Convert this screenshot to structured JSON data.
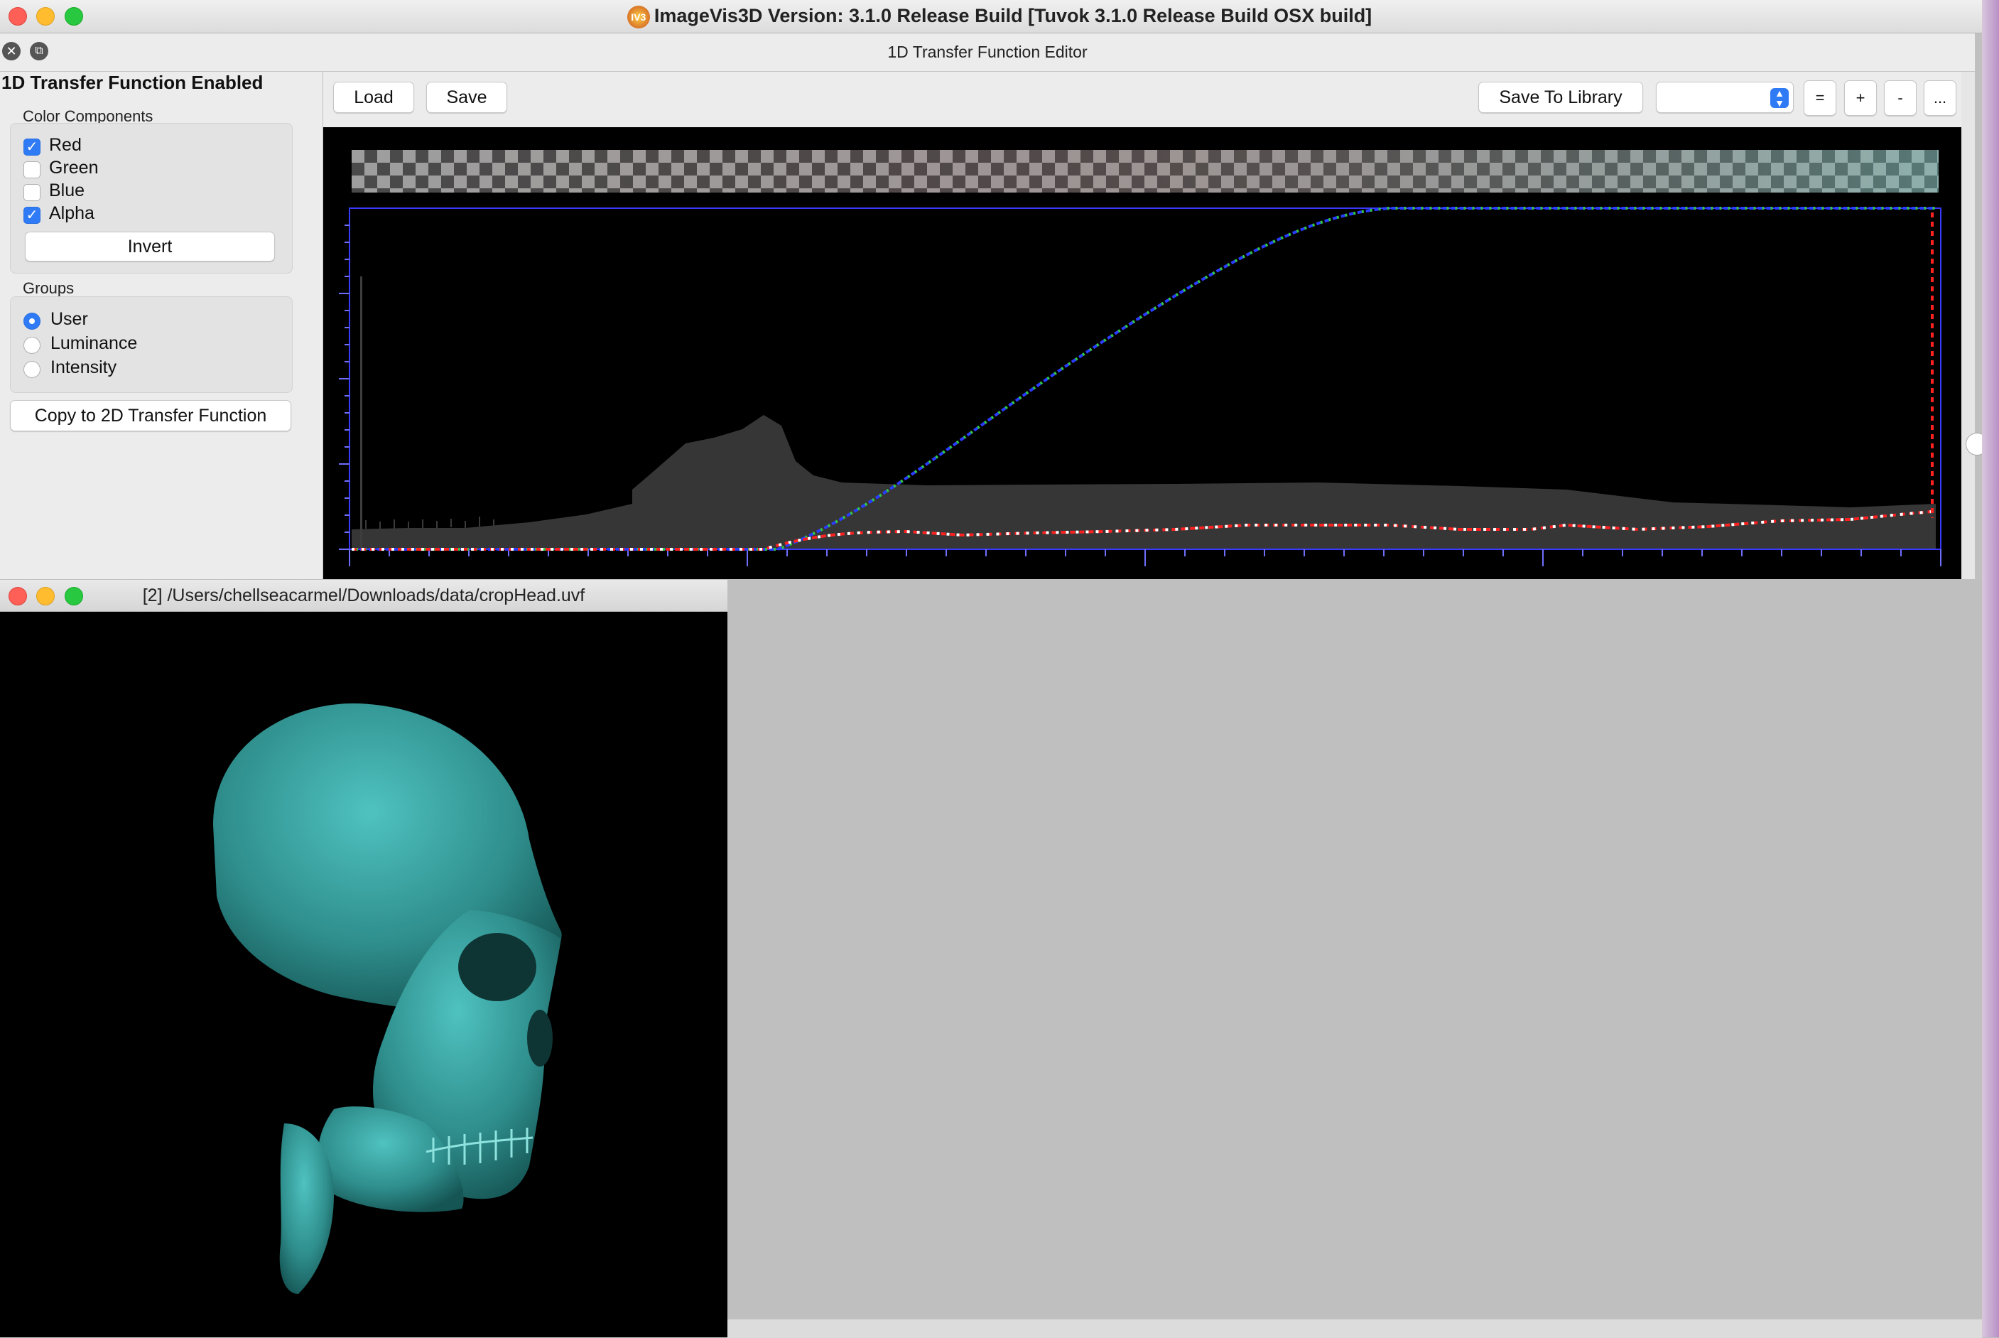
{
  "app": {
    "title": "ImageVis3D Version: 3.1.0 Release Build [Tuvok 3.1.0 Release Build OSX build]",
    "badge": "IV3"
  },
  "editor": {
    "window_title": "1D Transfer Function Editor",
    "panel_title": "1D Transfer Function Enabled",
    "color_components_label": "Color Components",
    "components": [
      {
        "label": "Red",
        "checked": true
      },
      {
        "label": "Green",
        "checked": false
      },
      {
        "label": "Blue",
        "checked": false
      },
      {
        "label": "Alpha",
        "checked": true
      }
    ],
    "invert_label": "Invert",
    "groups_label": "Groups",
    "groups": [
      {
        "label": "User",
        "selected": true
      },
      {
        "label": "Luminance",
        "selected": false
      },
      {
        "label": "Intensity",
        "selected": false
      }
    ],
    "copy_label": "Copy to 2D Transfer Function",
    "load_label": "Load",
    "save_label": "Save",
    "save_library_label": "Save To Library",
    "library_select_value": "",
    "btn_equal": "=",
    "btn_plus": "+",
    "btn_minus": "-",
    "btn_more": "...",
    "colors": {
      "alpha_curve": "#2a3cff",
      "alpha_dots": "#31c74a",
      "red_curve": "#ff2020",
      "red_dots": "#ffffff",
      "histogram": "#363636",
      "frame": "#3a3aff"
    }
  },
  "viewer": {
    "window_title": "[2] /Users/chellseacarmel/Downloads/data/cropHead.uvf",
    "render_color": "#3aa7a5"
  }
}
